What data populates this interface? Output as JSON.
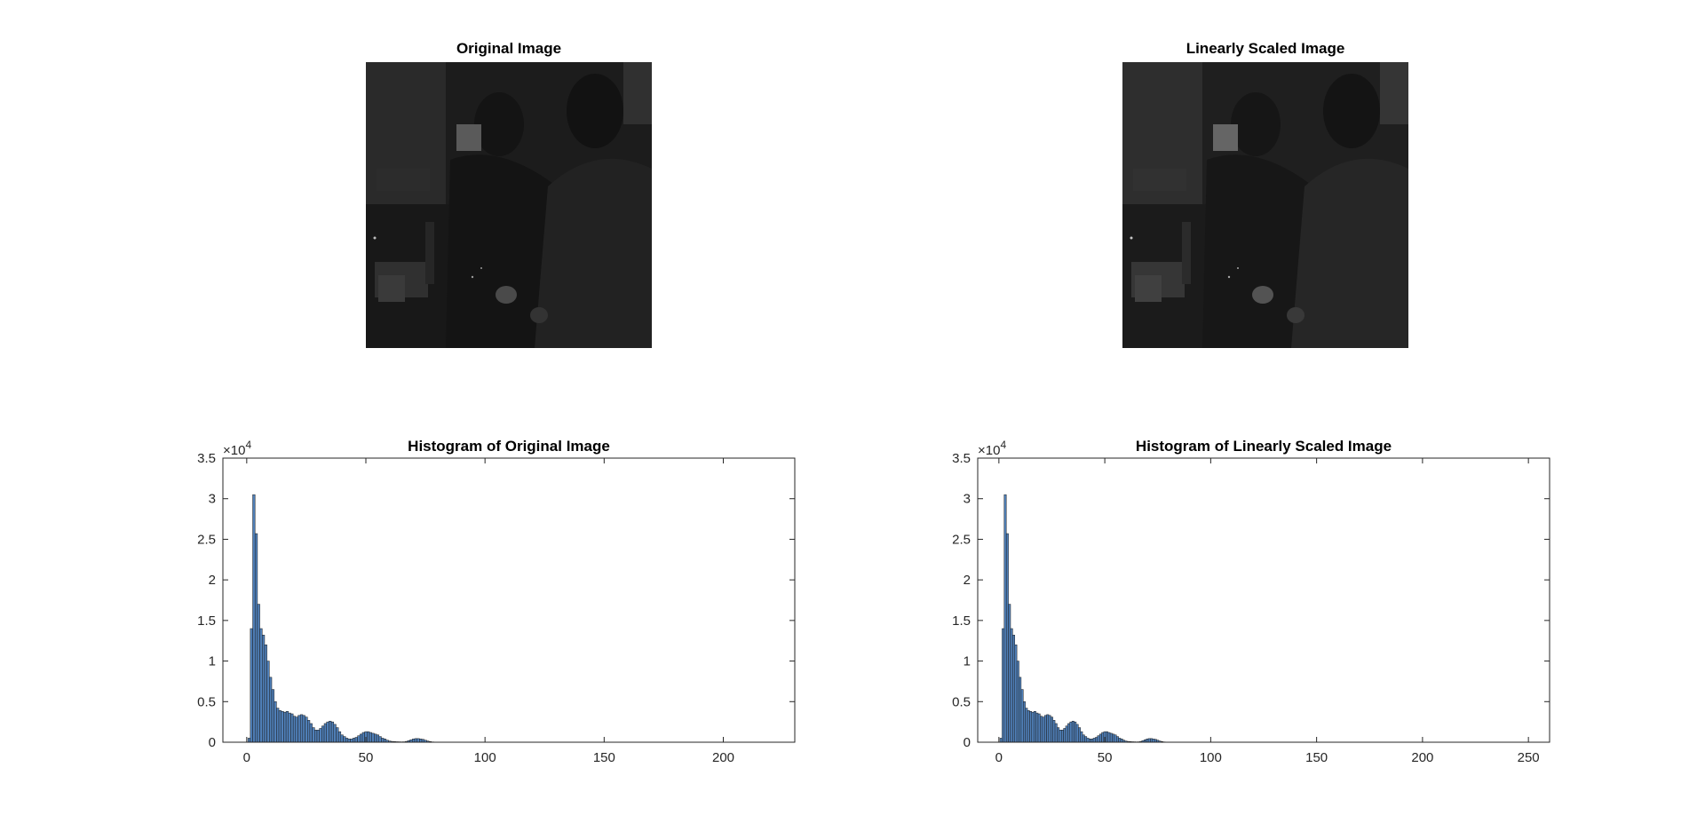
{
  "figure": {
    "panels": {
      "original_image": {
        "title": "Original Image"
      },
      "scaled_image": {
        "title": "Linearly Scaled Image"
      }
    }
  },
  "chart_data": [
    {
      "type": "bar",
      "title": "Histogram of Original Image",
      "xlabel": "",
      "ylabel": "",
      "xlim": [
        -10,
        230
      ],
      "ylim": [
        0,
        35000
      ],
      "y_exponent_label": "×10",
      "y_exponent_power": "4",
      "xticks": [
        0,
        50,
        100,
        150,
        200
      ],
      "xtick_labels": [
        "0",
        "50",
        "100",
        "150",
        "200"
      ],
      "yticks": [
        0,
        5000,
        10000,
        15000,
        20000,
        25000,
        30000,
        35000
      ],
      "ytick_labels": [
        "0",
        "0.5",
        "1",
        "1.5",
        "2",
        "2.5",
        "3",
        "3.5"
      ],
      "bar_color": "#4f7fb8",
      "grid": false,
      "x": [
        0,
        1,
        2,
        3,
        4,
        5,
        6,
        7,
        8,
        9,
        10,
        11,
        12,
        13,
        14,
        15,
        16,
        17,
        18,
        19,
        20,
        21,
        22,
        23,
        24,
        25,
        26,
        27,
        28,
        29,
        30,
        31,
        32,
        33,
        34,
        35,
        36,
        37,
        38,
        39,
        40,
        41,
        42,
        43,
        44,
        45,
        46,
        47,
        48,
        49,
        50,
        51,
        52,
        53,
        54,
        55,
        56,
        57,
        58,
        59,
        60,
        61,
        62,
        63,
        64,
        65,
        66,
        67,
        68,
        69,
        70,
        71,
        72,
        73,
        74,
        75,
        76,
        77,
        78,
        79,
        80,
        81,
        82,
        83,
        84,
        85
      ],
      "values": [
        0,
        500,
        14000,
        30500,
        25700,
        17000,
        14000,
        13200,
        12000,
        10000,
        8000,
        6500,
        5000,
        4200,
        3900,
        3800,
        3700,
        3800,
        3600,
        3500,
        3200,
        3100,
        3300,
        3400,
        3300,
        3100,
        2700,
        2300,
        1800,
        1500,
        1500,
        1700,
        2000,
        2300,
        2500,
        2600,
        2500,
        2200,
        1800,
        1300,
        900,
        700,
        500,
        400,
        400,
        500,
        600,
        800,
        1000,
        1200,
        1300,
        1300,
        1200,
        1100,
        1000,
        900,
        700,
        500,
        400,
        250,
        150,
        100,
        80,
        60,
        50,
        40,
        50,
        100,
        200,
        300,
        400,
        450,
        450,
        400,
        350,
        250,
        150,
        80,
        40,
        20,
        10,
        5,
        0,
        0,
        0,
        0
      ]
    },
    {
      "type": "bar",
      "title": "Histogram of Linearly Scaled Image",
      "xlabel": "",
      "ylabel": "",
      "xlim": [
        -10,
        260
      ],
      "ylim": [
        0,
        35000
      ],
      "y_exponent_label": "×10",
      "y_exponent_power": "4",
      "xticks": [
        0,
        50,
        100,
        150,
        200,
        250
      ],
      "xtick_labels": [
        "0",
        "50",
        "100",
        "150",
        "200",
        "250"
      ],
      "yticks": [
        0,
        5000,
        10000,
        15000,
        20000,
        25000,
        30000,
        35000
      ],
      "ytick_labels": [
        "0",
        "0.5",
        "1",
        "1.5",
        "2",
        "2.5",
        "3",
        "3.5"
      ],
      "bar_color": "#4f7fb8",
      "grid": false,
      "x": [
        0,
        1,
        2,
        3,
        4,
        5,
        6,
        7,
        8,
        9,
        10,
        11,
        12,
        13,
        14,
        15,
        16,
        17,
        18,
        19,
        20,
        21,
        22,
        23,
        24,
        25,
        26,
        27,
        28,
        29,
        30,
        31,
        32,
        33,
        34,
        35,
        36,
        37,
        38,
        39,
        40,
        41,
        42,
        43,
        44,
        45,
        46,
        47,
        48,
        49,
        50,
        51,
        52,
        53,
        54,
        55,
        56,
        57,
        58,
        59,
        60,
        61,
        62,
        63,
        64,
        65,
        66,
        67,
        68,
        69,
        70,
        71,
        72,
        73,
        74,
        75,
        76,
        77,
        78,
        79,
        80,
        81,
        82,
        83,
        84,
        85,
        86,
        87,
        88,
        89,
        90,
        91,
        92,
        93,
        94,
        95
      ],
      "values": [
        0,
        500,
        14000,
        30500,
        25700,
        17000,
        14000,
        13200,
        12000,
        10000,
        8000,
        6500,
        5000,
        4200,
        3900,
        3800,
        3700,
        3800,
        3600,
        3500,
        3200,
        3100,
        3300,
        3400,
        3300,
        3100,
        2700,
        2300,
        1800,
        1500,
        1500,
        1700,
        2000,
        2300,
        2500,
        2600,
        2500,
        2200,
        1800,
        1300,
        900,
        700,
        500,
        400,
        400,
        500,
        600,
        800,
        1000,
        1200,
        1300,
        1300,
        1200,
        1100,
        1000,
        900,
        700,
        500,
        400,
        250,
        150,
        100,
        80,
        60,
        50,
        40,
        50,
        100,
        200,
        300,
        400,
        450,
        450,
        400,
        350,
        250,
        150,
        80,
        40,
        20,
        10,
        5,
        0,
        0,
        0,
        0,
        0,
        0,
        0,
        0,
        0,
        0,
        0,
        0,
        0,
        0
      ]
    }
  ]
}
